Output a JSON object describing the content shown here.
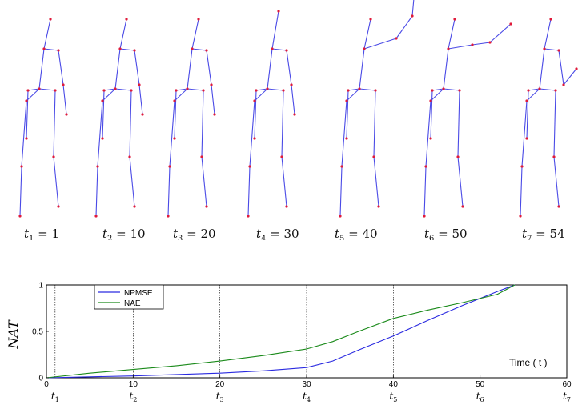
{
  "frames": [
    {
      "t_label": "t",
      "sub": "1",
      "eq": " = 1"
    },
    {
      "t_label": "t",
      "sub": "2",
      "eq": " = 10"
    },
    {
      "t_label": "t",
      "sub": "3",
      "eq": " = 20"
    },
    {
      "t_label": "t",
      "sub": "4",
      "eq": " = 30"
    },
    {
      "t_label": "t",
      "sub": "5",
      "eq": " = 40"
    },
    {
      "t_label": "t",
      "sub": "6",
      "eq": " = 50"
    },
    {
      "t_label": "t",
      "sub": "7",
      "eq": " = 54"
    }
  ],
  "chart_data": {
    "type": "line",
    "ylabel": "NAT",
    "xlabel": "Time ( t )",
    "xlim": [
      0,
      60
    ],
    "ylim": [
      0,
      1
    ],
    "xticks": [
      "0",
      "10",
      "20",
      "30",
      "40",
      "50",
      "60"
    ],
    "yticks": [
      "0",
      "0.5",
      "1"
    ],
    "vlines": [
      1,
      10,
      20,
      30,
      40,
      50
    ],
    "markers": [
      {
        "sub": "1",
        "x": 1
      },
      {
        "sub": "2",
        "x": 10
      },
      {
        "sub": "3",
        "x": 20
      },
      {
        "sub": "4",
        "x": 30
      },
      {
        "sub": "5",
        "x": 40
      },
      {
        "sub": "6",
        "x": 50
      },
      {
        "sub": "7",
        "x": 60
      }
    ],
    "legend_loc": "top-left",
    "series": [
      {
        "name": "NPMSE",
        "color": "#2a2ae0",
        "x": [
          0,
          5,
          10,
          15,
          20,
          25,
          30,
          33,
          36,
          40,
          44,
          48,
          52,
          54
        ],
        "y": [
          0.0,
          0.01,
          0.02,
          0.035,
          0.05,
          0.075,
          0.11,
          0.18,
          0.3,
          0.45,
          0.62,
          0.78,
          0.93,
          1.0
        ]
      },
      {
        "name": "NAE",
        "color": "#1a8a1a",
        "x": [
          0,
          5,
          10,
          15,
          20,
          25,
          30,
          33,
          36,
          40,
          44,
          48,
          52,
          54
        ],
        "y": [
          0.0,
          0.05,
          0.09,
          0.13,
          0.18,
          0.24,
          0.31,
          0.39,
          0.5,
          0.64,
          0.73,
          0.81,
          0.9,
          1.0
        ]
      }
    ]
  }
}
